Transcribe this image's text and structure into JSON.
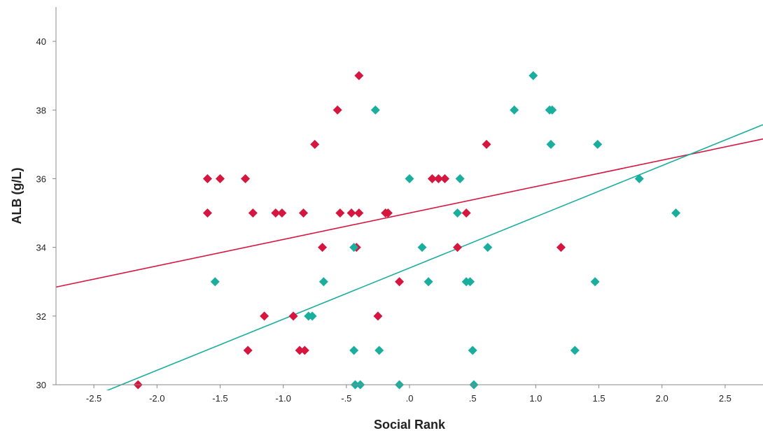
{
  "chart_data": {
    "type": "scatter",
    "title": "",
    "xlabel": "Social Rank",
    "ylabel": "ALB (g/L)",
    "xlim": [
      -2.8,
      2.8
    ],
    "ylim": [
      30,
      41
    ],
    "x_ticks": [
      -2.5,
      -2.0,
      -1.5,
      -1.0,
      -0.5,
      0.0,
      0.5,
      1.0,
      1.5,
      2.0,
      2.5
    ],
    "x_tick_labels": [
      "-2.5",
      "-2.0",
      "-1.5",
      "-1.0",
      "-.5",
      ".0",
      ".5",
      "1.0",
      "1.5",
      "2.0",
      "2.5"
    ],
    "y_ticks": [
      30,
      32,
      34,
      36,
      38,
      40
    ],
    "y_tick_labels": [
      "30",
      "32",
      "34",
      "36",
      "38",
      "40"
    ],
    "grid": false,
    "legend": "none",
    "series": [
      {
        "color": "#d6163f",
        "marker": "diamond",
        "points": [
          [
            -2.15,
            30
          ],
          [
            -1.6,
            36
          ],
          [
            -1.6,
            35
          ],
          [
            -1.5,
            36
          ],
          [
            -1.3,
            36
          ],
          [
            -1.28,
            31
          ],
          [
            -1.24,
            35
          ],
          [
            -1.15,
            32
          ],
          [
            -1.06,
            35
          ],
          [
            -1.01,
            35
          ],
          [
            -0.92,
            32
          ],
          [
            -0.87,
            31
          ],
          [
            -0.84,
            35
          ],
          [
            -0.83,
            31
          ],
          [
            -0.75,
            37
          ],
          [
            -0.69,
            34
          ],
          [
            -0.57,
            38
          ],
          [
            -0.55,
            35
          ],
          [
            -0.46,
            35
          ],
          [
            -0.42,
            34
          ],
          [
            -0.4,
            39
          ],
          [
            -0.4,
            35
          ],
          [
            -0.25,
            32
          ],
          [
            -0.19,
            35
          ],
          [
            -0.17,
            35
          ],
          [
            -0.08,
            33
          ],
          [
            0.18,
            36
          ],
          [
            0.23,
            36
          ],
          [
            0.28,
            36
          ],
          [
            0.38,
            34
          ],
          [
            0.45,
            35
          ],
          [
            0.61,
            37
          ],
          [
            1.2,
            34
          ]
        ],
        "fit_line": {
          "slope": 0.77,
          "intercept": 35.0
        }
      },
      {
        "color": "#1aae9f",
        "marker": "diamond",
        "points": [
          [
            -1.54,
            33
          ],
          [
            -0.8,
            32
          ],
          [
            -0.77,
            32
          ],
          [
            -0.68,
            33
          ],
          [
            -0.44,
            34
          ],
          [
            -0.44,
            31
          ],
          [
            -0.43,
            30
          ],
          [
            -0.39,
            30
          ],
          [
            -0.27,
            38
          ],
          [
            -0.24,
            31
          ],
          [
            -0.08,
            30
          ],
          [
            0.0,
            36
          ],
          [
            0.1,
            34
          ],
          [
            0.15,
            33
          ],
          [
            0.38,
            35
          ],
          [
            0.4,
            36
          ],
          [
            0.45,
            33
          ],
          [
            0.48,
            33
          ],
          [
            0.5,
            31
          ],
          [
            0.51,
            30
          ],
          [
            0.62,
            34
          ],
          [
            0.83,
            38
          ],
          [
            0.98,
            39
          ],
          [
            1.11,
            38
          ],
          [
            1.13,
            38
          ],
          [
            1.12,
            37
          ],
          [
            1.31,
            31
          ],
          [
            1.47,
            33
          ],
          [
            1.49,
            37
          ],
          [
            1.82,
            36
          ],
          [
            2.11,
            35
          ]
        ],
        "fit_line": {
          "slope": 1.49,
          "intercept": 33.4
        }
      }
    ]
  }
}
